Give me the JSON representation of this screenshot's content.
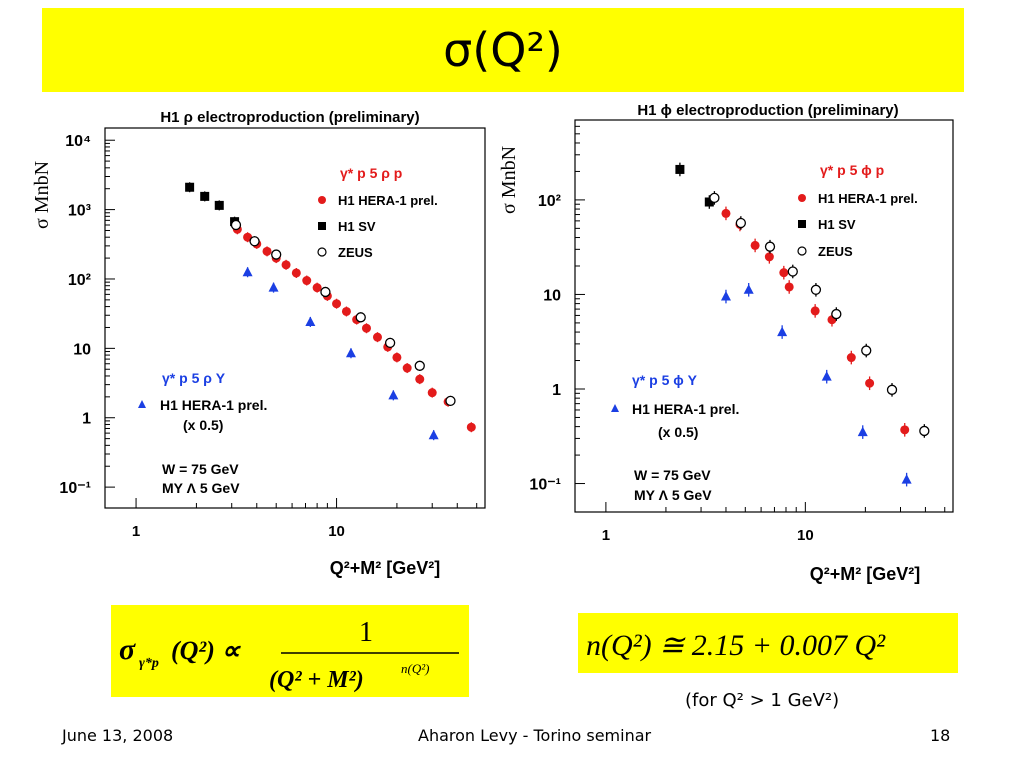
{
  "slide": {
    "title": "σ(Q²)",
    "footer_date": "June 13, 2008",
    "footer_center": "Aharon Levy - Torino seminar",
    "footer_page": "18",
    "note": "(for Q² > 1 GeV²)"
  },
  "formulas": {
    "left": {
      "lhs": "σ",
      "sub": "γ*p",
      "arg": "(Q²) ∝",
      "num": "1",
      "den": "(Q² + M²)",
      "den_exp": "n(Q²)"
    },
    "right": {
      "text": "n(Q²) ≅ 2.15 + 0.007 Q²"
    }
  },
  "chart_data": [
    {
      "type": "scatter",
      "title": "H1 ρ electroproduction (preliminary)",
      "ylabel": "σ MnbN",
      "xlabel": "Q²+M² [GeV²]",
      "x_scale": "log",
      "y_scale": "log",
      "xlim": [
        0.7,
        55
      ],
      "ylim": [
        0.05,
        15000
      ],
      "x_ticks": [
        "1",
        "10"
      ],
      "y_ticks": [
        "10⁴",
        "10³",
        "10²",
        "10",
        "1",
        "10⁻¹"
      ],
      "legend_title": "γ* p 5 ρ p",
      "legend": [
        "H1 HERA-1 prel.",
        "H1 SV",
        "ZEUS"
      ],
      "legend2_title": "γ* p 5 ρ Y",
      "legend2": [
        "H1 HERA-1 prel.",
        "(x 0.5)"
      ],
      "annotations": [
        "W = 75 GeV",
        "MY Λ 5 GeV"
      ],
      "series": [
        {
          "name": "H1 HERA-1 prel.",
          "marker": "circle",
          "color": "#e31b1b",
          "x": [
            3.2,
            3.6,
            4.0,
            4.5,
            5.0,
            5.6,
            6.3,
            7.1,
            8.0,
            9.0,
            10.0,
            11.2,
            12.6,
            14.1,
            16,
            18,
            20,
            22.5,
            26,
            30,
            36,
            47
          ],
          "y": [
            520,
            400,
            320,
            250,
            200,
            160,
            122,
            95,
            75,
            57,
            44,
            34,
            26,
            19.5,
            14.5,
            10.5,
            7.4,
            5.2,
            3.6,
            2.3,
            1.7,
            0.73
          ]
        },
        {
          "name": "H1 SV",
          "marker": "square",
          "color": "#000000",
          "x": [
            1.85,
            2.2,
            2.6,
            3.1
          ],
          "y": [
            2100,
            1550,
            1150,
            670
          ]
        },
        {
          "name": "ZEUS",
          "marker": "open-circle",
          "color": "#000000",
          "x": [
            3.15,
            3.9,
            5.0,
            8.8,
            13.2,
            18.5,
            26,
            37
          ],
          "y": [
            600,
            350,
            225,
            65,
            28,
            12,
            5.6,
            1.75
          ]
        },
        {
          "name": "H1 HERA-1 prel. (x 0.5)",
          "marker": "triangle",
          "color": "#1b3fe3",
          "x": [
            3.6,
            4.85,
            7.4,
            11.8,
            19.2,
            30.5
          ],
          "y": [
            125,
            75,
            24,
            8.5,
            2.1,
            0.56
          ]
        }
      ]
    },
    {
      "type": "scatter",
      "title": "H1 ϕ electroproduction (preliminary)",
      "ylabel": "σ MnbN",
      "xlabel": "Q²+M² [GeV²]",
      "x_scale": "log",
      "y_scale": "log",
      "xlim": [
        0.7,
        55
      ],
      "ylim": [
        0.05,
        700
      ],
      "x_ticks": [
        "1",
        "10"
      ],
      "y_ticks": [
        "10²",
        "10",
        "1",
        "10⁻¹"
      ],
      "legend_title": "γ* p 5 ϕ p",
      "legend": [
        "H1 HERA-1 prel.",
        "H1 SV",
        "ZEUS"
      ],
      "legend2_title": "γ* p 5 ϕ Y",
      "legend2": [
        "H1 HERA-1 prel.",
        "(x 0.5)"
      ],
      "annotations": [
        "W = 75 GeV",
        "MY Λ 5 GeV"
      ],
      "series": [
        {
          "name": "H1 HERA-1 prel.",
          "marker": "circle",
          "color": "#e31b1b",
          "x": [
            4.0,
            4.7,
            5.6,
            6.6,
            7.8,
            8.3,
            11.2,
            13.6,
            17,
            21,
            31.5
          ],
          "y": [
            72,
            55,
            33,
            25,
            17,
            12,
            6.7,
            5.4,
            2.15,
            1.15,
            0.37
          ]
        },
        {
          "name": "H1 SV",
          "marker": "square",
          "color": "#000000",
          "x": [
            2.35,
            3.3
          ],
          "y": [
            210,
            95
          ]
        },
        {
          "name": "ZEUS",
          "marker": "open-circle",
          "color": "#000000",
          "x": [
            3.5,
            4.75,
            6.65,
            8.65,
            11.3,
            14.3,
            20.2,
            27.2,
            39.5
          ],
          "y": [
            105,
            57,
            32,
            17.5,
            11.2,
            6.2,
            2.55,
            0.98,
            0.36
          ]
        },
        {
          "name": "H1 HERA-1 prel. (x 0.5)",
          "marker": "triangle",
          "color": "#1b3fe3",
          "x": [
            4.0,
            5.2,
            7.65,
            12.8,
            19.4,
            32.2
          ],
          "y": [
            9.5,
            11.2,
            4.0,
            1.35,
            0.35,
            0.11
          ]
        }
      ]
    }
  ]
}
